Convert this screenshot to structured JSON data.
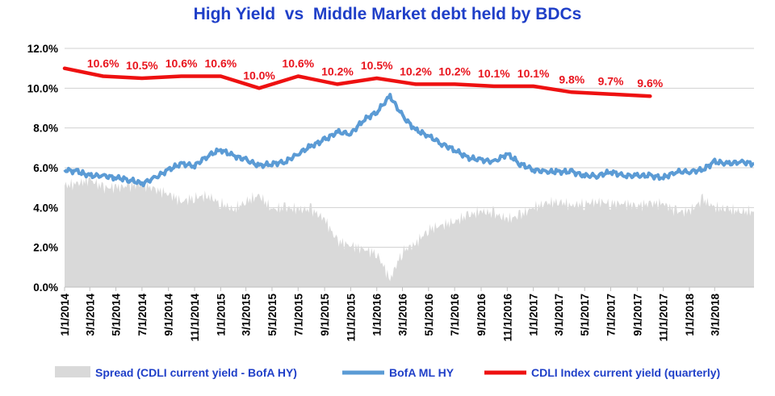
{
  "chart_data": {
    "type": "line",
    "title": "High Yield  vs  Middle Market debt held by BDCs",
    "ylim": [
      0,
      12
    ],
    "y_ticks": [
      "0.0%",
      "2.0%",
      "4.0%",
      "6.0%",
      "8.0%",
      "10.0%",
      "12.0%"
    ],
    "x_range": [
      "2014-01-01",
      "2018-06-01"
    ],
    "x_ticks": [
      "1/1/2014",
      "3/1/2014",
      "5/1/2014",
      "7/1/2014",
      "9/1/2014",
      "11/1/2014",
      "1/1/2015",
      "3/1/2015",
      "5/1/2015",
      "7/1/2015",
      "9/1/2015",
      "11/1/2015",
      "1/1/2016",
      "3/1/2016",
      "5/1/2016",
      "7/1/2016",
      "9/1/2016",
      "11/1/2016",
      "1/1/2017",
      "3/1/2017",
      "5/1/2017",
      "7/1/2017",
      "9/1/2017",
      "11/1/2017",
      "1/1/2018",
      "3/1/2018"
    ],
    "grid": true,
    "legend_position": "bottom",
    "colors": {
      "spread": "#d9d9d9",
      "hy": "#5b9bd5",
      "cdli": "#ee1111",
      "labels": "#e8141d",
      "title": "#1f3fc8"
    },
    "series": [
      {
        "name": "Spread (CDLI current yield - BofA HY)",
        "kind": "area",
        "x": [
          "2014-01-01",
          "2014-02-01",
          "2014-03-01",
          "2014-04-01",
          "2014-05-01",
          "2014-06-01",
          "2014-07-01",
          "2014-08-01",
          "2014-09-01",
          "2014-10-01",
          "2014-11-01",
          "2014-12-01",
          "2015-01-01",
          "2015-02-01",
          "2015-03-01",
          "2015-04-01",
          "2015-05-01",
          "2015-06-01",
          "2015-07-01",
          "2015-08-01",
          "2015-09-01",
          "2015-10-01",
          "2015-11-01",
          "2015-12-01",
          "2016-01-01",
          "2016-02-01",
          "2016-03-01",
          "2016-04-01",
          "2016-05-01",
          "2016-06-01",
          "2016-07-01",
          "2016-08-01",
          "2016-09-01",
          "2016-10-01",
          "2016-11-01",
          "2016-12-01",
          "2017-01-01",
          "2017-02-01",
          "2017-03-01",
          "2017-04-01",
          "2017-05-01",
          "2017-06-01",
          "2017-07-01",
          "2017-08-01",
          "2017-09-01",
          "2017-10-01",
          "2017-11-01",
          "2017-12-01",
          "2018-01-01",
          "2018-02-01",
          "2018-03-01",
          "2018-04-01",
          "2018-05-01",
          "2018-06-01"
        ],
        "values": [
          5.1,
          5.2,
          5.4,
          5.0,
          5.0,
          5.1,
          5.2,
          4.9,
          4.7,
          4.3,
          4.5,
          4.6,
          4.2,
          3.9,
          4.3,
          4.6,
          3.9,
          4.0,
          3.9,
          3.9,
          3.4,
          2.3,
          2.1,
          1.9,
          1.7,
          0.4,
          1.8,
          2.2,
          2.9,
          3.1,
          3.3,
          3.6,
          3.8,
          3.7,
          3.4,
          3.6,
          4.0,
          4.2,
          4.3,
          4.1,
          4.2,
          4.3,
          4.2,
          4.2,
          4.1,
          4.2,
          4.2,
          3.8,
          3.8,
          4.4,
          4.0,
          3.9,
          3.8,
          3.8
        ]
      },
      {
        "name": "BofA ML HY",
        "kind": "line",
        "x": [
          "2014-01-01",
          "2014-02-01",
          "2014-03-01",
          "2014-04-01",
          "2014-05-01",
          "2014-06-01",
          "2014-07-01",
          "2014-08-01",
          "2014-09-01",
          "2014-10-01",
          "2014-11-01",
          "2014-12-01",
          "2015-01-01",
          "2015-02-01",
          "2015-03-01",
          "2015-04-01",
          "2015-05-01",
          "2015-06-01",
          "2015-07-01",
          "2015-08-01",
          "2015-09-01",
          "2015-10-01",
          "2015-11-01",
          "2015-12-01",
          "2016-01-01",
          "2016-02-01",
          "2016-03-01",
          "2016-04-01",
          "2016-05-01",
          "2016-06-01",
          "2016-07-01",
          "2016-08-01",
          "2016-09-01",
          "2016-10-01",
          "2016-11-01",
          "2016-12-01",
          "2017-01-01",
          "2017-02-01",
          "2017-03-01",
          "2017-04-01",
          "2017-05-01",
          "2017-06-01",
          "2017-07-01",
          "2017-08-01",
          "2017-09-01",
          "2017-10-01",
          "2017-11-01",
          "2017-12-01",
          "2018-01-01",
          "2018-02-01",
          "2018-03-01",
          "2018-04-01",
          "2018-05-01",
          "2018-06-01"
        ],
        "values": [
          5.9,
          5.8,
          5.6,
          5.6,
          5.5,
          5.4,
          5.2,
          5.5,
          5.9,
          6.2,
          6.1,
          6.6,
          6.9,
          6.6,
          6.4,
          6.1,
          6.2,
          6.3,
          6.7,
          7.1,
          7.4,
          7.8,
          7.7,
          8.4,
          8.8,
          9.6,
          8.6,
          7.9,
          7.6,
          7.2,
          6.9,
          6.5,
          6.4,
          6.3,
          6.7,
          6.2,
          5.9,
          5.8,
          5.8,
          5.8,
          5.6,
          5.6,
          5.8,
          5.6,
          5.6,
          5.6,
          5.5,
          5.8,
          5.8,
          5.9,
          6.3,
          6.2,
          6.3,
          6.2
        ]
      },
      {
        "name": "CDLI Index current yield (quarterly)",
        "kind": "line",
        "x": [
          "2014-01-01",
          "2014-04-01",
          "2014-07-01",
          "2014-10-01",
          "2015-01-01",
          "2015-04-01",
          "2015-07-01",
          "2015-10-01",
          "2016-01-01",
          "2016-04-01",
          "2016-07-01",
          "2016-10-01",
          "2017-01-01",
          "2017-04-01",
          "2017-07-01",
          "2017-10-01"
        ],
        "values": [
          11.0,
          10.6,
          10.5,
          10.6,
          10.6,
          10.0,
          10.6,
          10.2,
          10.5,
          10.2,
          10.2,
          10.1,
          10.1,
          9.8,
          9.7,
          9.6
        ],
        "data_labels": [
          "",
          "10.6%",
          "10.5%",
          "10.6%",
          "10.6%",
          "10.0%",
          "10.6%",
          "10.2%",
          "10.5%",
          "10.2%",
          "10.2%",
          "10.1%",
          "10.1%",
          "9.8%",
          "9.7%",
          "9.6%"
        ]
      }
    ]
  }
}
